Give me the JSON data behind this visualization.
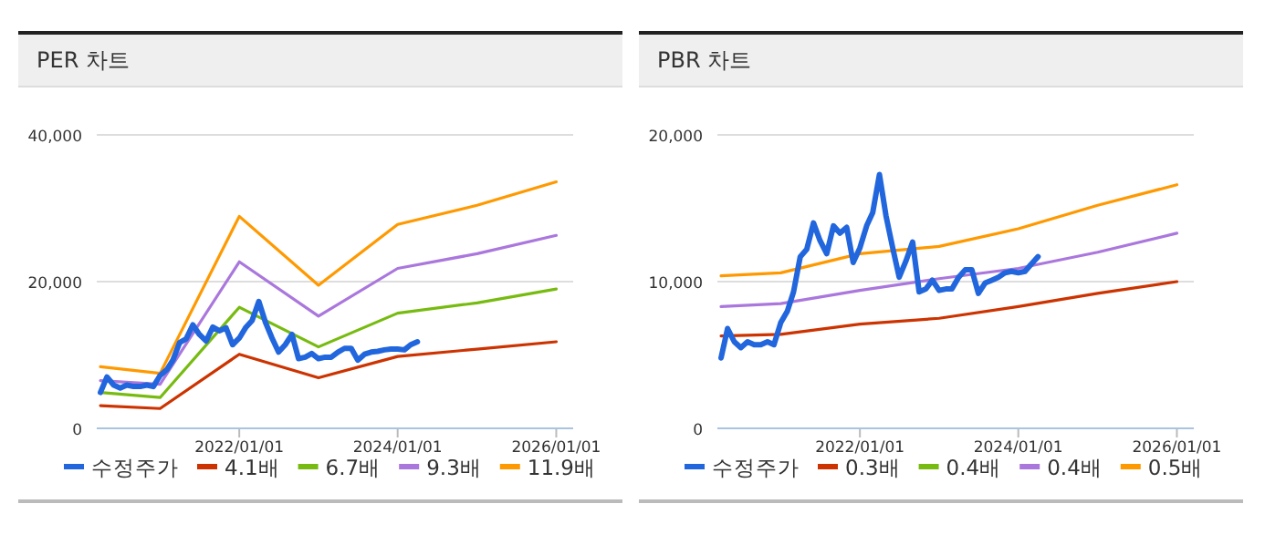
{
  "chart_data": [
    {
      "type": "line",
      "title": "PER 차트",
      "xlim": [
        "2020-03-15",
        "2026-03-20"
      ],
      "ylim": [
        0,
        40000
      ],
      "xticks": [
        {
          "value": "2022-01-01",
          "label": "2022/01/01"
        },
        {
          "value": "2024-01-01",
          "label": "2024/01/01"
        },
        {
          "value": "2026-01-01",
          "label": "2026/01/01"
        }
      ],
      "yticks": [
        0,
        {
          "value": 20000,
          "label": "20,000"
        },
        {
          "value": 40000,
          "label": "40,000"
        }
      ],
      "grid": "y",
      "legend": "bottom",
      "series": [
        {
          "name": "수정주가",
          "color": "#2266dd",
          "x": [
            "2020-04",
            "2020-05",
            "2020-06",
            "2020-07",
            "2020-08",
            "2020-09",
            "2020-10",
            "2020-11",
            "2020-12",
            "2021-01",
            "2021-02",
            "2021-03",
            "2021-04",
            "2021-05",
            "2021-06",
            "2021-07",
            "2021-08",
            "2021-09",
            "2021-10",
            "2021-11",
            "2021-12",
            "2022-01",
            "2022-02",
            "2022-03",
            "2022-04",
            "2022-05",
            "2022-06",
            "2022-07",
            "2022-08",
            "2022-09",
            "2022-10",
            "2022-11",
            "2022-12",
            "2023-01",
            "2023-02",
            "2023-03",
            "2023-04",
            "2023-05",
            "2023-06",
            "2023-07",
            "2023-08",
            "2023-09",
            "2023-10",
            "2023-11",
            "2023-12",
            "2024-01",
            "2024-02",
            "2024-03",
            "2024-04"
          ],
          "values": [
            4900,
            7000,
            5900,
            5500,
            5900,
            5700,
            5700,
            5900,
            5700,
            7200,
            8000,
            9300,
            11700,
            12200,
            14100,
            12800,
            11900,
            13800,
            13300,
            13700,
            11400,
            12300,
            13800,
            14700,
            17300,
            14500,
            12300,
            10400,
            11400,
            12800,
            9500,
            9700,
            10200,
            9500,
            9700,
            9700,
            10400,
            10900,
            10900,
            9300,
            10100,
            10400,
            10500,
            10700,
            10800,
            10800,
            10700,
            11400,
            11800
          ]
        },
        {
          "name": "4.1배",
          "color": "#cc3300",
          "x": [
            "2020-04",
            "2021-01",
            "2022-01",
            "2023-01",
            "2024-01",
            "2025-01",
            "2026-01"
          ],
          "values": [
            3100,
            2700,
            10100,
            6900,
            9800,
            10800,
            11800
          ]
        },
        {
          "name": "6.7배",
          "color": "#77bb11",
          "x": [
            "2020-04",
            "2021-01",
            "2022-01",
            "2023-01",
            "2024-01",
            "2025-01",
            "2026-01"
          ],
          "values": [
            4900,
            4200,
            16500,
            11100,
            15700,
            17100,
            19000
          ]
        },
        {
          "name": "9.3배",
          "color": "#aa77dd",
          "x": [
            "2020-04",
            "2021-01",
            "2022-01",
            "2023-01",
            "2024-01",
            "2025-01",
            "2026-01"
          ],
          "values": [
            6500,
            6000,
            22700,
            15300,
            21800,
            23800,
            26300
          ]
        },
        {
          "name": "11.9배",
          "color": "#ff9900",
          "x": [
            "2020-04",
            "2021-01",
            "2022-01",
            "2023-01",
            "2024-01",
            "2025-01",
            "2026-01"
          ],
          "values": [
            8400,
            7500,
            28900,
            19500,
            27800,
            30400,
            33600
          ]
        }
      ]
    },
    {
      "type": "line",
      "title": "PBR 차트",
      "xlim": [
        "2020-03-15",
        "2026-03-20"
      ],
      "ylim": [
        0,
        20000
      ],
      "xticks": [
        {
          "value": "2022-01-01",
          "label": "2022/01/01"
        },
        {
          "value": "2024-01-01",
          "label": "2024/01/01"
        },
        {
          "value": "2026-01-01",
          "label": "2026/01/01"
        }
      ],
      "yticks": [
        0,
        {
          "value": 10000,
          "label": "10,000"
        },
        {
          "value": 20000,
          "label": "20,000"
        }
      ],
      "grid": "y",
      "legend": "bottom",
      "series": [
        {
          "name": "수정주가",
          "color": "#2266dd",
          "x": [
            "2020-04",
            "2020-05",
            "2020-06",
            "2020-07",
            "2020-08",
            "2020-09",
            "2020-10",
            "2020-11",
            "2020-12",
            "2021-01",
            "2021-02",
            "2021-03",
            "2021-04",
            "2021-05",
            "2021-06",
            "2021-07",
            "2021-08",
            "2021-09",
            "2021-10",
            "2021-11",
            "2021-12",
            "2022-01",
            "2022-02",
            "2022-03",
            "2022-04",
            "2022-05",
            "2022-06",
            "2022-07",
            "2022-08",
            "2022-09",
            "2022-10",
            "2022-11",
            "2022-12",
            "2023-01",
            "2023-02",
            "2023-03",
            "2023-04",
            "2023-05",
            "2023-06",
            "2023-07",
            "2023-08",
            "2023-09",
            "2023-10",
            "2023-11",
            "2023-12",
            "2024-01",
            "2024-02",
            "2024-03",
            "2024-04"
          ],
          "values": [
            4800,
            6800,
            5900,
            5500,
            5900,
            5700,
            5700,
            5900,
            5700,
            7200,
            8000,
            9300,
            11700,
            12200,
            14000,
            12800,
            11900,
            13800,
            13300,
            13700,
            11300,
            12300,
            13800,
            14700,
            17300,
            14500,
            12300,
            10300,
            11400,
            12700,
            9300,
            9500,
            10100,
            9400,
            9500,
            9500,
            10300,
            10800,
            10800,
            9200,
            9900,
            10100,
            10300,
            10600,
            10700,
            10600,
            10700,
            11200,
            11700
          ]
        },
        {
          "name": "0.3배",
          "color": "#cc3300",
          "x": [
            "2020-04",
            "2021-01",
            "2022-01",
            "2023-01",
            "2024-01",
            "2025-01",
            "2026-01"
          ],
          "values": [
            6300,
            6400,
            7100,
            7500,
            8300,
            9200,
            10000
          ]
        },
        {
          "name": "0.4배",
          "color": "#77bb11"
        },
        {
          "name": "0.4배",
          "color": "#aa77dd",
          "x": [
            "2020-04",
            "2021-01",
            "2022-01",
            "2023-01",
            "2024-01",
            "2025-01",
            "2026-01"
          ],
          "values": [
            8300,
            8500,
            9400,
            10200,
            10900,
            12000,
            13300
          ]
        },
        {
          "name": "0.5배",
          "color": "#ff9900",
          "x": [
            "2020-04",
            "2021-01",
            "2022-01",
            "2023-01",
            "2024-01",
            "2025-01",
            "2026-01"
          ],
          "values": [
            10400,
            10600,
            11900,
            12400,
            13600,
            15200,
            16600
          ]
        }
      ]
    }
  ]
}
